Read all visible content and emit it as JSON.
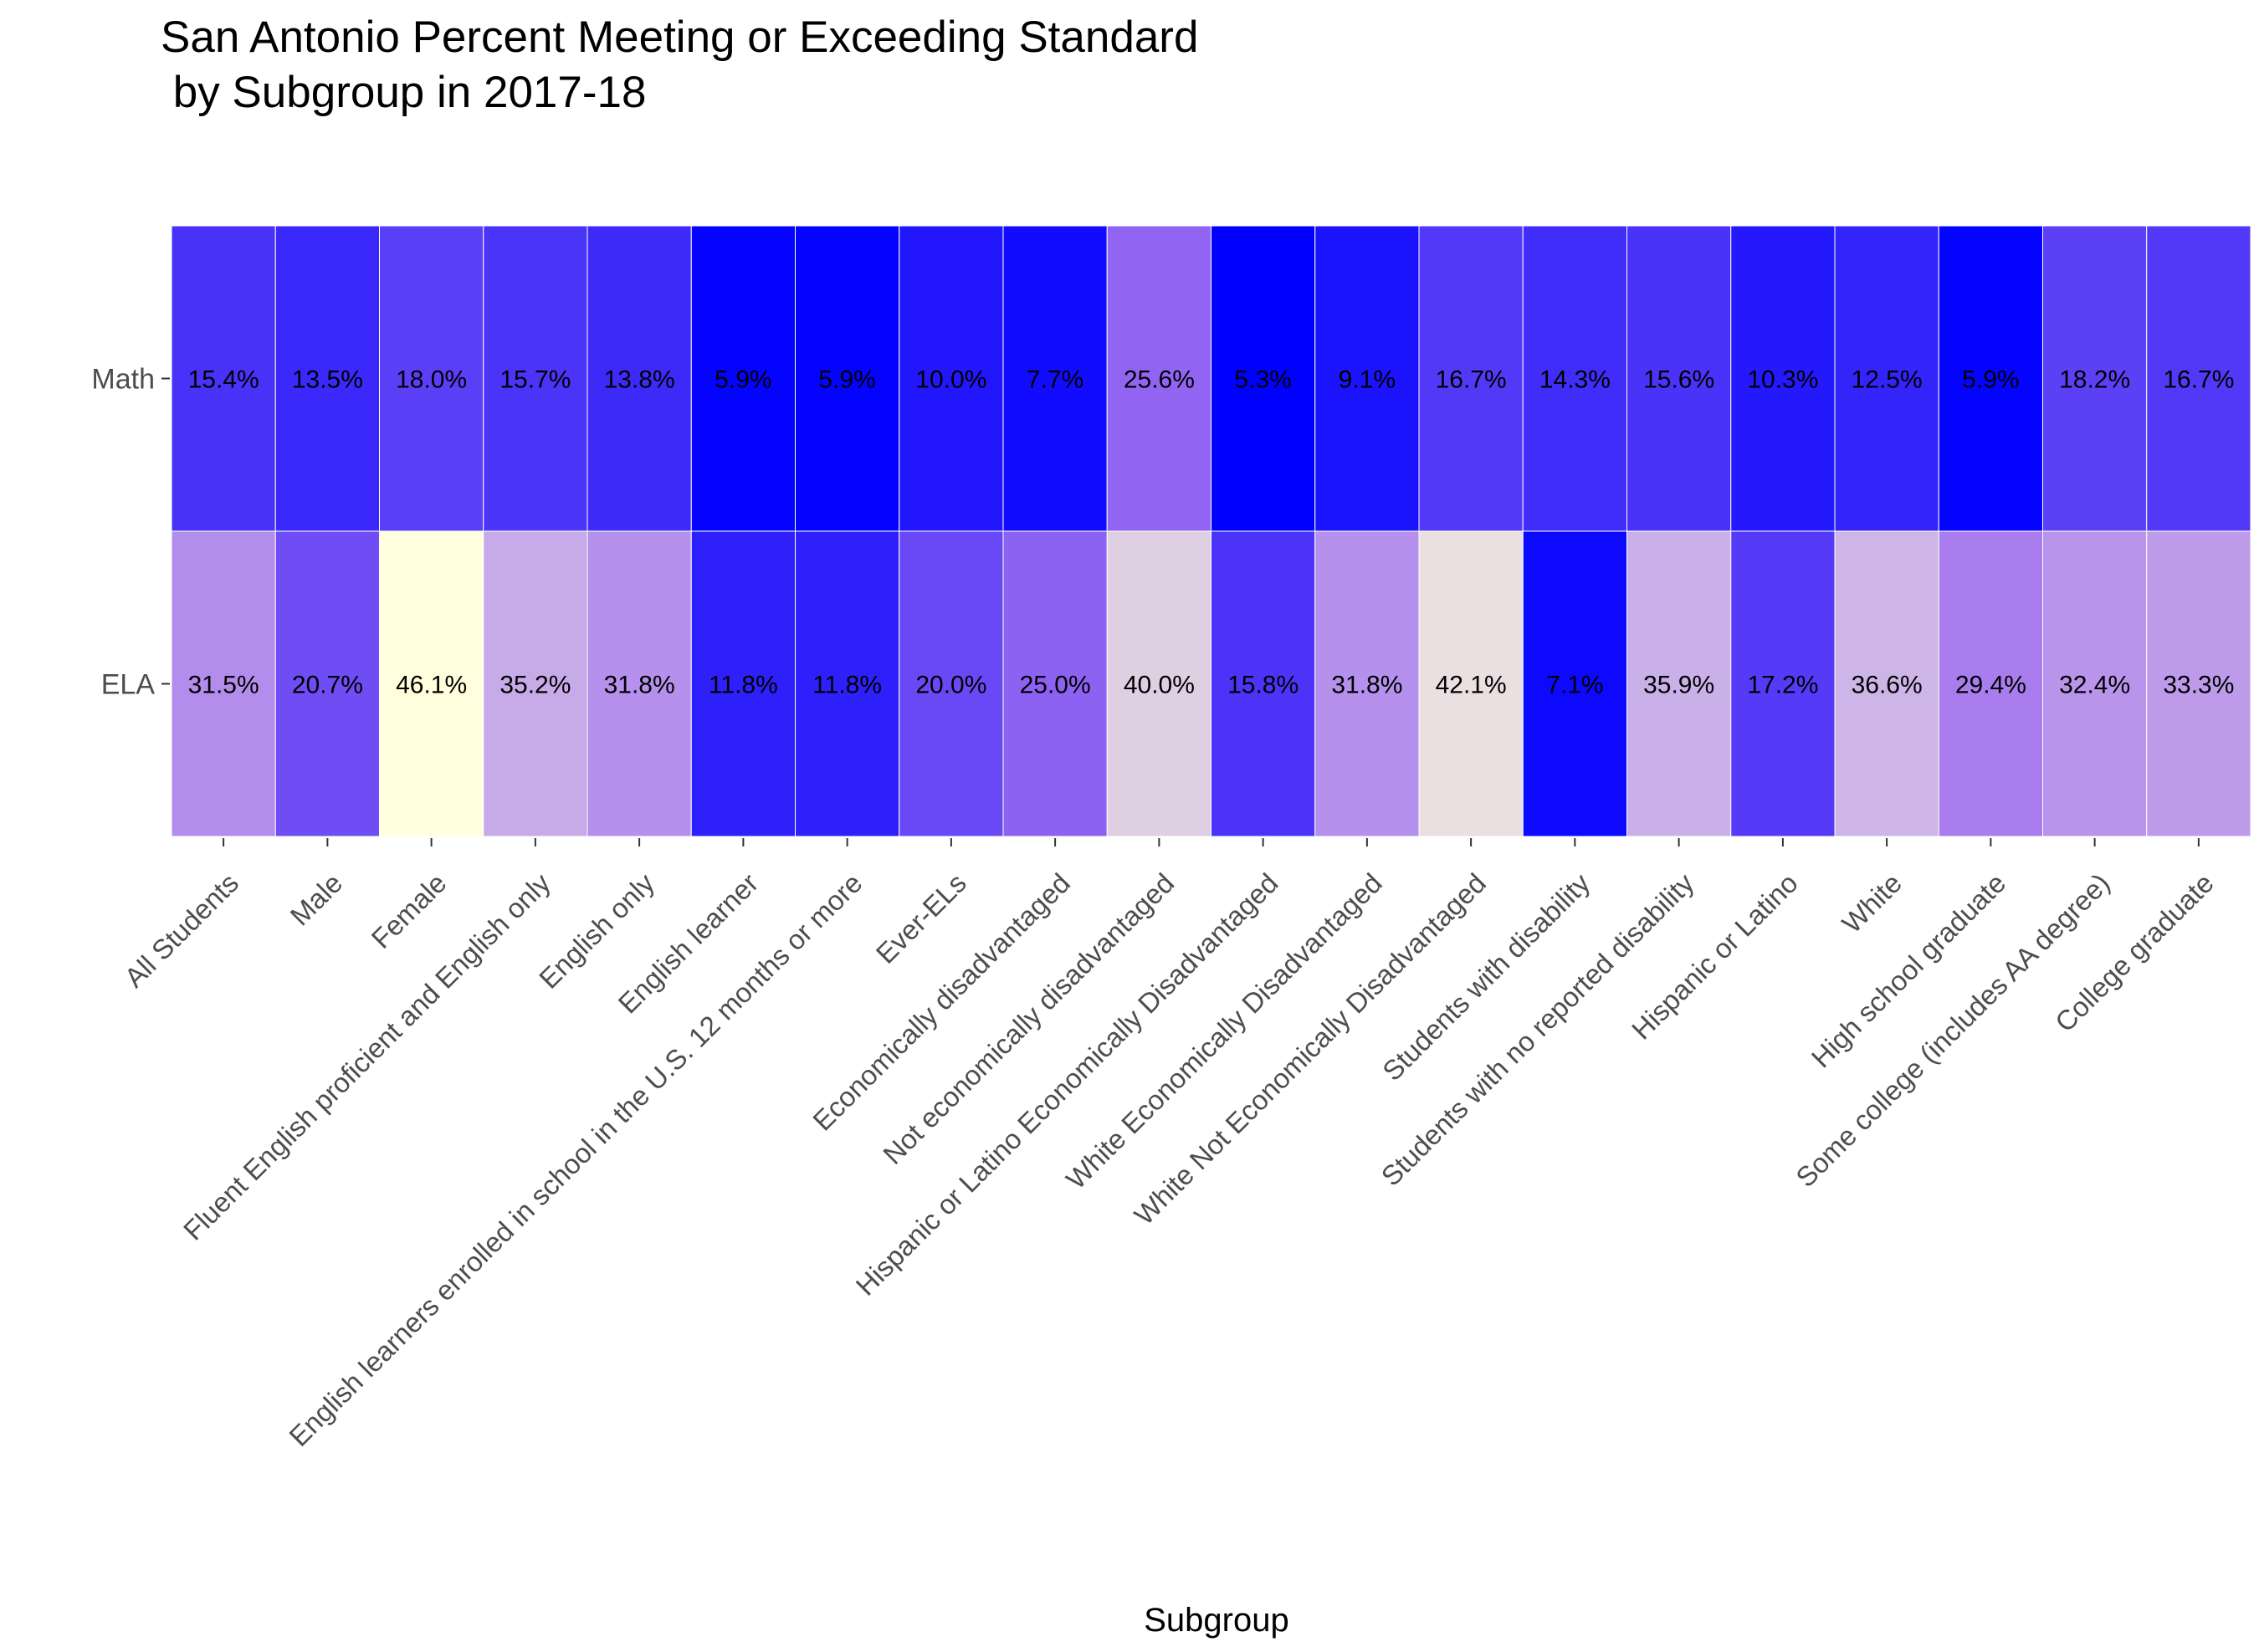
{
  "chart_data": {
    "type": "heatmap",
    "title_line1": "San Antonio Percent Meeting or Exceeding Standard",
    "title_line2": " by Subgroup in 2017-18",
    "xlabel": "Subgroup",
    "ylabel": "",
    "categories": [
      "All Students",
      "Male",
      "Female",
      "Fluent English proficient and English only",
      "English only",
      "English learner",
      "English learners enrolled in school in the U.S. 12 months or more",
      "Ever-ELs",
      "Economically disadvantaged",
      "Not economically disadvantaged",
      "Hispanic or Latino Economically Disadvantaged",
      "White Economically Disadvantaged",
      "White Not Economically Disadvantaged",
      "Students with disability",
      "Students with no reported disability",
      "Hispanic or Latino",
      "White",
      "High school graduate",
      "Some college (includes AA degree)",
      "College graduate"
    ],
    "rows": [
      "Math",
      "ELA"
    ],
    "values": [
      [
        15.4,
        13.5,
        18.0,
        15.7,
        13.8,
        5.9,
        5.9,
        10.0,
        7.7,
        25.6,
        5.3,
        9.1,
        16.7,
        14.3,
        15.6,
        10.3,
        12.5,
        5.9,
        18.2,
        16.7
      ],
      [
        31.5,
        20.7,
        46.1,
        35.2,
        31.8,
        11.8,
        11.8,
        20.0,
        25.0,
        40.0,
        15.8,
        31.8,
        42.1,
        7.1,
        35.9,
        17.2,
        36.6,
        29.4,
        32.4,
        33.3
      ]
    ],
    "labels": [
      [
        "15.4%",
        "13.5%",
        "18.0%",
        "15.7%",
        "13.8%",
        "5.9%",
        "5.9%",
        "10.0%",
        "7.7%",
        "25.6%",
        "5.3%",
        "9.1%",
        "16.7%",
        "14.3%",
        "15.6%",
        "10.3%",
        "12.5%",
        "5.9%",
        "18.2%",
        "16.7%"
      ],
      [
        "31.5%",
        "20.7%",
        "46.1%",
        "35.2%",
        "31.8%",
        "11.8%",
        "11.8%",
        "20.0%",
        "25.0%",
        "40.0%",
        "15.8%",
        "31.8%",
        "42.1%",
        "7.1%",
        "35.9%",
        "17.2%",
        "36.6%",
        "29.4%",
        "32.4%",
        "33.3%"
      ]
    ],
    "color_scale": {
      "low_color": "#0000ff",
      "mid_color": "#a070f0",
      "high_color": "#ffffdd",
      "low_value": 5.3,
      "high_value": 46.1
    },
    "grid": false,
    "legend": "none"
  }
}
